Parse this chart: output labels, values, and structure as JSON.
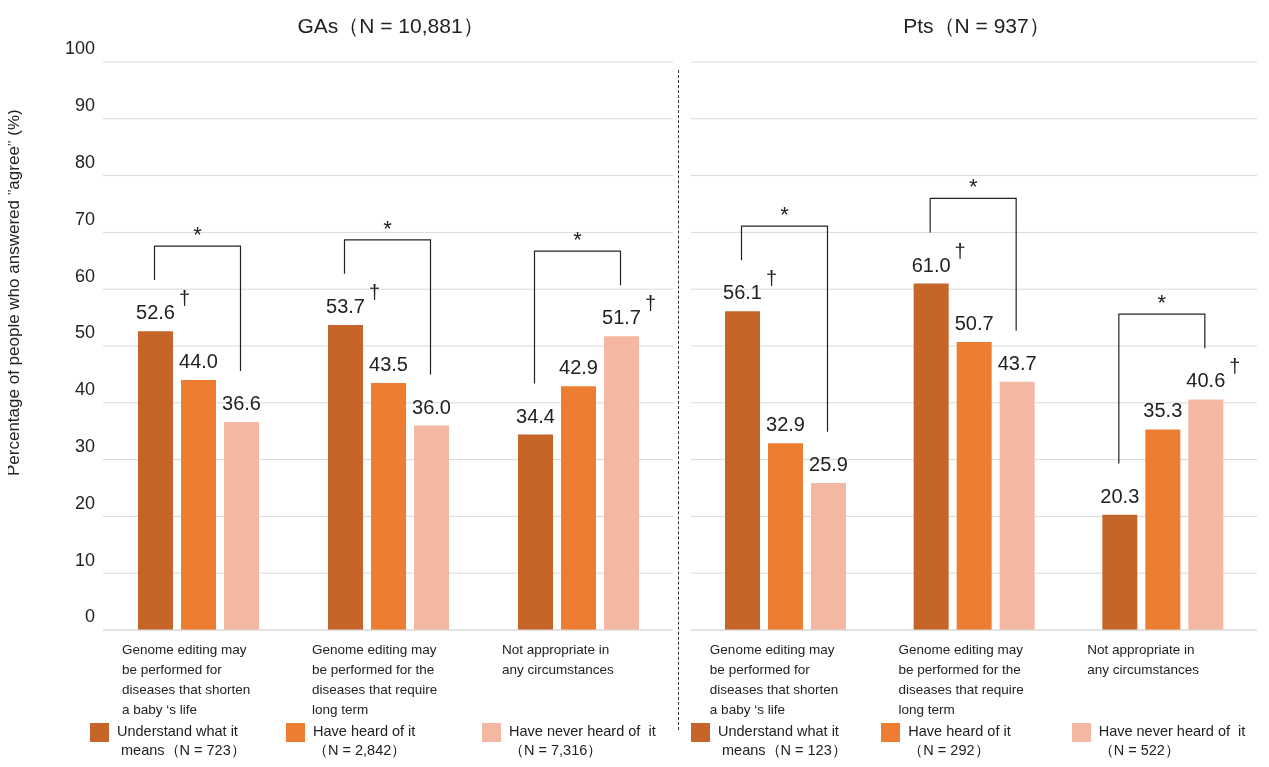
{
  "chart_data": [
    {
      "type": "bar",
      "title": "GAs（N = 10,881）",
      "ylabel": "Percentage of people who answered ”agree” (%)",
      "categories": [
        "Genome editing may\nbe performed for\ndiseases that shorten\na baby ‘s life",
        "Genome editing may\nbe performed for the\ndiseases that require\nlong term",
        "Not appropriate in\nany circumstances"
      ],
      "series": [
        {
          "name": "Understand what it\n means（N = 723）",
          "color": "#c5652a",
          "values": [
            52.6,
            53.7,
            34.4
          ],
          "value_labels": [
            "52.6",
            "53.7",
            "34.4"
          ]
        },
        {
          "name": "Have heard of it\n（N = 2,842）",
          "color": "#ed7d31",
          "values": [
            44.0,
            43.5,
            42.9
          ],
          "value_labels": [
            "44.0",
            "43.5",
            "42.9"
          ]
        },
        {
          "name": "Have never heard of  it\n（N = 7,316）",
          "color": "#f4b7a2",
          "values": [
            36.6,
            36.0,
            51.7
          ],
          "value_labels": [
            "36.6",
            "36.0",
            "51.7"
          ]
        }
      ],
      "ylim": [
        0,
        100
      ],
      "yticks": [
        0,
        10,
        20,
        30,
        40,
        50,
        60,
        70,
        80,
        90,
        100
      ],
      "grid": "y",
      "legend": "bottom",
      "annotations": [
        "*",
        "*",
        "*",
        "†",
        "†",
        "†"
      ]
    },
    {
      "type": "bar",
      "title": "Pts（N = 937）",
      "categories": [
        "Genome editing may\nbe performed for\ndiseases that shorten\na baby ‘s life",
        "Genome editing may\nbe performed for the\ndiseases that require\nlong term",
        "Not appropriate in\nany circumstances"
      ],
      "series": [
        {
          "name": "Understand what it\n means（N = 123）",
          "color": "#c5652a",
          "values": [
            56.1,
            61.0,
            20.3
          ],
          "value_labels": [
            "56.1",
            "61.0",
            "20.3"
          ]
        },
        {
          "name": "Have heard of it\n（N = 292）",
          "color": "#ed7d31",
          "values": [
            32.9,
            50.7,
            35.3
          ],
          "value_labels": [
            "32.9",
            "50.7",
            "35.3"
          ]
        },
        {
          "name": "Have never heard of  it\n（N = 522）",
          "color": "#f4b7a2",
          "values": [
            25.9,
            43.7,
            40.6
          ],
          "value_labels": [
            "25.9",
            "43.7",
            "40.6"
          ]
        }
      ],
      "ylim": [
        0,
        100
      ],
      "yticks": [
        0,
        10,
        20,
        30,
        40,
        50,
        60,
        70,
        80,
        90,
        100
      ],
      "grid": "y",
      "legend": "bottom",
      "tick_labels": "x",
      "annotations": [
        "*",
        "*",
        "*",
        "†",
        "†",
        "†"
      ]
    }
  ]
}
